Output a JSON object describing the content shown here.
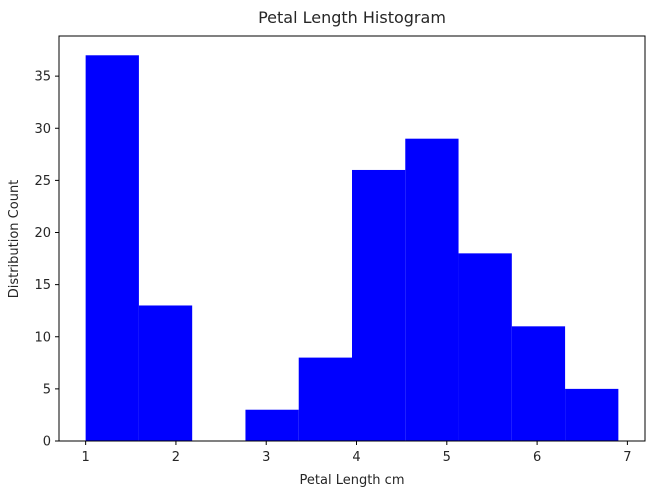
{
  "chart_data": {
    "type": "histogram",
    "title": "Petal Length Histogram",
    "xlabel": "Petal Length cm",
    "ylabel": "Distribution Count",
    "bar_color": "#0000ff",
    "xlim": [
      0.705,
      7.195
    ],
    "ylim": [
      0,
      38.85
    ],
    "bin_edges": [
      1.0,
      1.59,
      2.18,
      2.77,
      3.36,
      3.95,
      4.54,
      5.13,
      5.72,
      6.31,
      6.9
    ],
    "counts": [
      37,
      13,
      0,
      3,
      8,
      26,
      29,
      18,
      11,
      5
    ],
    "xticks": [
      1,
      2,
      3,
      4,
      5,
      6,
      7
    ],
    "yticks": [
      0,
      5,
      10,
      15,
      20,
      25,
      30,
      35
    ],
    "grid": false,
    "legend": "none"
  }
}
